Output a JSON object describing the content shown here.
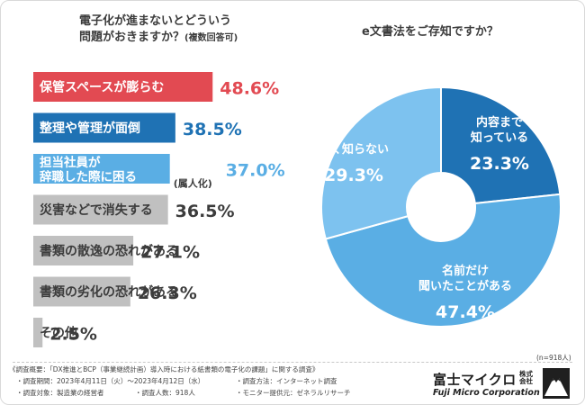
{
  "left_title": [
    "電子化が進まないとどういう",
    "問題がおきますか？"
  ],
  "left_title_note": "(複数回答可)",
  "right_title": "e文書法をご存知ですか？",
  "n_label": "(n=918人)",
  "footnotes": {
    "overview": "《調査概要：「DX推進とBCP（事業継続計画）導入時における紙書類の電子化の課題」に関する調査》",
    "period": "・調査期間：2023年4月11日（火）〜2023年4月12日（水）",
    "method": "・調査方法：インターネット調査",
    "target": "・調査対象：製造業の経営者",
    "count": "・調査人数：918人",
    "provider": "・モニター提供元：ゼネラルリサーチ"
  },
  "logo": {
    "jp": "富士マイクロ",
    "kk": "株式会社",
    "en": "Fuji Micro Corporation"
  },
  "chart_data": [
    {
      "type": "bar",
      "orientation": "horizontal",
      "title": "電子化が進まないとどういう問題がおきますか？(複数回答可)",
      "unit": "%",
      "categories": [
        "保管スペースが膨らむ",
        "整理や管理が面倒",
        "担当社員が辞職した際に困る（属人化）",
        "災害などで消失する",
        "書類の散逸の恐れがある",
        "書類の劣化の恐れがある",
        "その他"
      ],
      "label_lines": [
        [
          "保管スペースが膨らむ"
        ],
        [
          "整理や管理が面倒"
        ],
        [
          "担当社員が",
          "辞職した際に困る"
        ],
        [
          "災害などで消失する"
        ],
        [
          "書類の散逸の恐れがある"
        ],
        [
          "書類の劣化の恐れがある"
        ],
        [
          "その他"
        ]
      ],
      "label_notes": [
        "",
        "",
        "(属人化)",
        "",
        "",
        "",
        ""
      ],
      "values": [
        48.6,
        38.5,
        37.0,
        36.5,
        27.1,
        26.3,
        2.5
      ],
      "value_labels": [
        "48.6%",
        "38.5%",
        "37.0%",
        "36.5%",
        "27.1%",
        "26.3%",
        "2.5%"
      ],
      "colors": [
        "#e24a52",
        "#1f72b4",
        "#5aaee4",
        "#c0c0c0",
        "#c0c0c0",
        "#c0c0c0",
        "#c0c0c0"
      ],
      "value_colors": [
        "#e24a52",
        "#1f72b4",
        "#5aaee4",
        "#3c3c3c",
        "#3c3c3c",
        "#3c3c3c",
        "#3c3c3c"
      ],
      "xlim": [
        0,
        100
      ]
    },
    {
      "type": "pie",
      "style": "donut",
      "title": "e文書法をご存知ですか？",
      "unit": "%",
      "slices": [
        {
          "label": "内容まで知っている",
          "lines": [
            "内容まで",
            "知っている"
          ],
          "value": 23.3,
          "value_label": "23.3%",
          "color": "#1f72b4"
        },
        {
          "label": "名前だけ聞いたことがある",
          "lines": [
            "名前だけ",
            "聞いたことがある"
          ],
          "value": 47.4,
          "value_label": "47.4%",
          "color": "#5aaee4"
        },
        {
          "label": "全く知らない",
          "lines": [
            "全く知らない"
          ],
          "value": 29.3,
          "value_label": "29.3%",
          "color": "#7dc2ef"
        }
      ]
    }
  ]
}
